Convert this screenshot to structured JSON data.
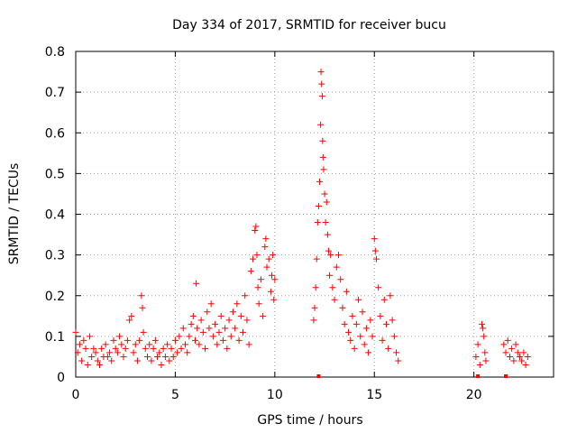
{
  "chart_data": {
    "type": "scatter",
    "title": "Day 334 of 2017, SRMTID for receiver bucu",
    "xlabel": "GPS time / hours",
    "ylabel": "SRMTID / TECUs",
    "xlim": [
      0,
      24
    ],
    "ylim": [
      0,
      0.8
    ],
    "grid": true,
    "marker": "+",
    "colors": {
      "points": "#ff0000",
      "axes": "#000000",
      "grid": "#a0a0a0"
    },
    "xticks": [
      {
        "value": 0,
        "label": "0"
      },
      {
        "value": 5,
        "label": "5"
      },
      {
        "value": 10,
        "label": "10"
      },
      {
        "value": 15,
        "label": "15"
      },
      {
        "value": 20,
        "label": "20"
      }
    ],
    "yticks": [
      {
        "value": 0,
        "label": "0"
      },
      {
        "value": 0.1,
        "label": "0.1"
      },
      {
        "value": 0.2,
        "label": "0.2"
      },
      {
        "value": 0.3,
        "label": "0.3"
      },
      {
        "value": 0.4,
        "label": "0.4"
      },
      {
        "value": 0.5,
        "label": "0.5"
      },
      {
        "value": 0.6,
        "label": "0.6"
      },
      {
        "value": 0.7,
        "label": "0.7"
      },
      {
        "value": 0.8,
        "label": "0.8"
      }
    ],
    "series": [
      {
        "name": "SRMTID",
        "points": [
          [
            0.0,
            0.11
          ],
          [
            0.1,
            0.06
          ],
          [
            0.2,
            0.08
          ],
          [
            0.3,
            0.04
          ],
          [
            0.4,
            0.09
          ],
          [
            0.5,
            0.07
          ],
          [
            0.6,
            0.03
          ],
          [
            0.7,
            0.1
          ],
          [
            0.8,
            0.05
          ],
          [
            0.9,
            0.07
          ],
          [
            1.0,
            0.06
          ],
          [
            1.1,
            0.04
          ],
          [
            1.2,
            0.03
          ],
          [
            1.3,
            0.07
          ],
          [
            1.4,
            0.05
          ],
          [
            1.5,
            0.08
          ],
          [
            1.6,
            0.05
          ],
          [
            1.7,
            0.06
          ],
          [
            1.8,
            0.04
          ],
          [
            1.9,
            0.09
          ],
          [
            2.0,
            0.07
          ],
          [
            2.1,
            0.06
          ],
          [
            2.2,
            0.1
          ],
          [
            2.3,
            0.08
          ],
          [
            2.4,
            0.05
          ],
          [
            2.5,
            0.07
          ],
          [
            2.6,
            0.09
          ],
          [
            2.7,
            0.14
          ],
          [
            2.8,
            0.15
          ],
          [
            2.9,
            0.06
          ],
          [
            3.0,
            0.08
          ],
          [
            3.1,
            0.04
          ],
          [
            3.2,
            0.09
          ],
          [
            3.3,
            0.2
          ],
          [
            3.35,
            0.17
          ],
          [
            3.4,
            0.11
          ],
          [
            3.5,
            0.07
          ],
          [
            3.6,
            0.05
          ],
          [
            3.7,
            0.08
          ],
          [
            3.8,
            0.04
          ],
          [
            3.9,
            0.07
          ],
          [
            4.0,
            0.09
          ],
          [
            4.1,
            0.05
          ],
          [
            4.2,
            0.06
          ],
          [
            4.3,
            0.03
          ],
          [
            4.4,
            0.07
          ],
          [
            4.5,
            0.05
          ],
          [
            4.6,
            0.08
          ],
          [
            4.7,
            0.04
          ],
          [
            4.8,
            0.07
          ],
          [
            4.9,
            0.05
          ],
          [
            5.0,
            0.09
          ],
          [
            5.1,
            0.06
          ],
          [
            5.2,
            0.1
          ],
          [
            5.3,
            0.07
          ],
          [
            5.4,
            0.12
          ],
          [
            5.5,
            0.08
          ],
          [
            5.6,
            0.06
          ],
          [
            5.7,
            0.1
          ],
          [
            5.8,
            0.13
          ],
          [
            5.9,
            0.15
          ],
          [
            6.0,
            0.09
          ],
          [
            6.05,
            0.23
          ],
          [
            6.1,
            0.12
          ],
          [
            6.2,
            0.08
          ],
          [
            6.3,
            0.14
          ],
          [
            6.4,
            0.11
          ],
          [
            6.5,
            0.07
          ],
          [
            6.6,
            0.16
          ],
          [
            6.7,
            0.12
          ],
          [
            6.8,
            0.18
          ],
          [
            6.9,
            0.1
          ],
          [
            7.0,
            0.13
          ],
          [
            7.1,
            0.08
          ],
          [
            7.2,
            0.11
          ],
          [
            7.3,
            0.15
          ],
          [
            7.4,
            0.09
          ],
          [
            7.5,
            0.12
          ],
          [
            7.6,
            0.07
          ],
          [
            7.7,
            0.14
          ],
          [
            7.8,
            0.1
          ],
          [
            7.9,
            0.16
          ],
          [
            8.0,
            0.12
          ],
          [
            8.1,
            0.18
          ],
          [
            8.2,
            0.09
          ],
          [
            8.3,
            0.15
          ],
          [
            8.4,
            0.11
          ],
          [
            8.5,
            0.2
          ],
          [
            8.6,
            0.14
          ],
          [
            8.7,
            0.08
          ],
          [
            8.8,
            0.26
          ],
          [
            8.9,
            0.29
          ],
          [
            9.0,
            0.36
          ],
          [
            9.05,
            0.37
          ],
          [
            9.1,
            0.3
          ],
          [
            9.15,
            0.22
          ],
          [
            9.2,
            0.18
          ],
          [
            9.3,
            0.24
          ],
          [
            9.4,
            0.15
          ],
          [
            9.5,
            0.32
          ],
          [
            9.55,
            0.34
          ],
          [
            9.6,
            0.27
          ],
          [
            9.7,
            0.29
          ],
          [
            9.8,
            0.21
          ],
          [
            9.85,
            0.25
          ],
          [
            9.9,
            0.3
          ],
          [
            9.95,
            0.19
          ],
          [
            10.0,
            0.24
          ],
          [
            11.95,
            0.14
          ],
          [
            12.0,
            0.17
          ],
          [
            12.05,
            0.22
          ],
          [
            12.1,
            0.29
          ],
          [
            12.15,
            0.38
          ],
          [
            12.2,
            0.42
          ],
          [
            12.25,
            0.48
          ],
          [
            12.3,
            0.62
          ],
          [
            12.32,
            0.75
          ],
          [
            12.35,
            0.72
          ],
          [
            12.38,
            0.69
          ],
          [
            12.4,
            0.58
          ],
          [
            12.42,
            0.54
          ],
          [
            12.45,
            0.51
          ],
          [
            12.5,
            0.45
          ],
          [
            12.55,
            0.38
          ],
          [
            12.6,
            0.43
          ],
          [
            12.65,
            0.35
          ],
          [
            12.7,
            0.31
          ],
          [
            12.75,
            0.25
          ],
          [
            12.8,
            0.3
          ],
          [
            12.9,
            0.22
          ],
          [
            13.0,
            0.19
          ],
          [
            13.1,
            0.27
          ],
          [
            13.2,
            0.3
          ],
          [
            13.3,
            0.24
          ],
          [
            13.4,
            0.17
          ],
          [
            13.5,
            0.13
          ],
          [
            13.6,
            0.21
          ],
          [
            13.7,
            0.11
          ],
          [
            13.8,
            0.09
          ],
          [
            13.9,
            0.15
          ],
          [
            14.0,
            0.07
          ],
          [
            14.1,
            0.13
          ],
          [
            14.2,
            0.19
          ],
          [
            14.3,
            0.1
          ],
          [
            14.4,
            0.16
          ],
          [
            14.5,
            0.08
          ],
          [
            14.6,
            0.12
          ],
          [
            14.7,
            0.06
          ],
          [
            14.8,
            0.14
          ],
          [
            14.9,
            0.1
          ],
          [
            15.0,
            0.34
          ],
          [
            15.05,
            0.31
          ],
          [
            15.1,
            0.29
          ],
          [
            15.2,
            0.22
          ],
          [
            15.3,
            0.15
          ],
          [
            15.4,
            0.09
          ],
          [
            15.5,
            0.19
          ],
          [
            15.6,
            0.13
          ],
          [
            15.7,
            0.07
          ],
          [
            15.8,
            0.2
          ],
          [
            15.9,
            0.14
          ],
          [
            16.0,
            0.1
          ],
          [
            16.1,
            0.06
          ],
          [
            16.2,
            0.04
          ],
          [
            20.1,
            0.05
          ],
          [
            20.2,
            0.08
          ],
          [
            20.3,
            0.03
          ],
          [
            20.4,
            0.13
          ],
          [
            20.45,
            0.12
          ],
          [
            20.5,
            0.1
          ],
          [
            20.55,
            0.06
          ],
          [
            20.6,
            0.04
          ],
          [
            21.5,
            0.08
          ],
          [
            21.6,
            0.06
          ],
          [
            21.7,
            0.09
          ],
          [
            21.8,
            0.05
          ],
          [
            21.9,
            0.07
          ],
          [
            22.0,
            0.04
          ],
          [
            22.1,
            0.08
          ],
          [
            22.2,
            0.06
          ],
          [
            22.3,
            0.05
          ],
          [
            22.4,
            0.04
          ],
          [
            22.5,
            0.06
          ],
          [
            22.6,
            0.03
          ],
          [
            22.7,
            0.05
          ]
        ]
      }
    ],
    "zero_markers": [
      12.2,
      20.2,
      21.6
    ]
  }
}
